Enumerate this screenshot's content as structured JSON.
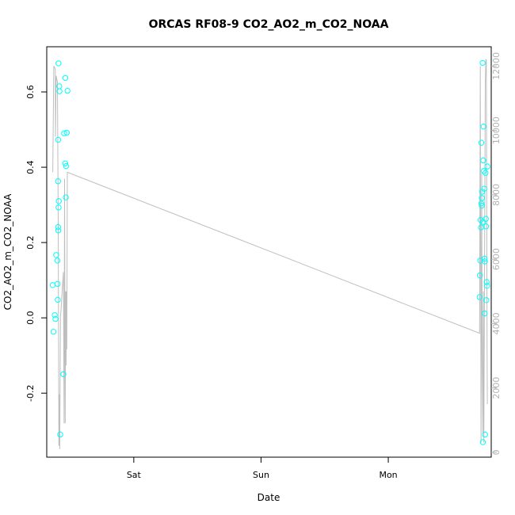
{
  "chart_data": {
    "type": "scatter",
    "title": "ORCAS RF08-9 CO2_AO2_m_CO2_NOAA",
    "xlabel": "Date",
    "ylabel": "CO2_AO2_m_CO2_NOAA",
    "y2label": "",
    "x_axis": {
      "kind": "date",
      "range": [
        "2016-02-19T07:35",
        "2016-02-22T19:25"
      ],
      "ticks": [
        {
          "value": "2016-02-20T00:00",
          "label": "Sat"
        },
        {
          "value": "2016-02-21T00:00",
          "label": "Sun"
        },
        {
          "value": "2016-02-22T00:00",
          "label": "Mon"
        }
      ]
    },
    "y_axis": {
      "range": [
        -0.37,
        0.72
      ],
      "ticks": [
        -0.2,
        0.0,
        0.2,
        0.4,
        0.6
      ],
      "tick_labels": [
        "-0.2",
        "0.0",
        "0.2",
        "0.4",
        "0.6"
      ]
    },
    "y2_axis": {
      "range": [
        -150,
        12600
      ],
      "ticks": [
        0,
        2000,
        4000,
        6000,
        8000,
        10000,
        12000
      ],
      "tick_labels": [
        "0",
        "2000",
        "4000",
        "6000",
        "8000",
        "10000",
        "12000"
      ],
      "color": "#b3b3b3"
    },
    "grid": false,
    "series": [
      {
        "role": "points",
        "axis": "left",
        "color": "#00ffff",
        "marker": "open-circle",
        "points": [
          [
            "2016-02-19T08:43",
            0.087
          ],
          [
            "2016-02-19T08:51",
            -0.037
          ],
          [
            "2016-02-19T09:06",
            0.007
          ],
          [
            "2016-02-19T09:14",
            -0.003
          ],
          [
            "2016-02-19T09:22",
            0.167
          ],
          [
            "2016-02-19T09:36",
            0.152
          ],
          [
            "2016-02-19T09:38",
            0.09
          ],
          [
            "2016-02-19T09:40",
            0.048
          ],
          [
            "2016-02-19T09:43",
            0.363
          ],
          [
            "2016-02-19T09:43",
            0.241
          ],
          [
            "2016-02-19T09:45",
            0.232
          ],
          [
            "2016-02-19T09:44",
            0.473
          ],
          [
            "2016-02-19T09:49",
            0.293
          ],
          [
            "2016-02-19T09:51",
            0.31
          ],
          [
            "2016-02-19T09:48",
            0.676
          ],
          [
            "2016-02-19T09:57",
            0.615
          ],
          [
            "2016-02-19T09:59",
            0.602
          ],
          [
            "2016-02-19T10:07",
            -0.31
          ],
          [
            "2016-02-19T10:43",
            -0.15
          ],
          [
            "2016-02-19T10:51",
            0.49
          ],
          [
            "2016-02-19T11:04",
            0.41
          ],
          [
            "2016-02-19T11:06",
            0.637
          ],
          [
            "2016-02-19T11:11",
            0.32
          ],
          [
            "2016-02-19T11:14",
            0.403
          ],
          [
            "2016-02-19T11:22",
            0.492
          ],
          [
            "2016-02-19T11:30",
            0.603
          ],
          [
            "2016-02-22T17:13",
            0.055
          ],
          [
            "2016-02-22T17:17",
            0.113
          ],
          [
            "2016-02-22T17:21",
            0.152
          ],
          [
            "2016-02-22T17:25",
            0.26
          ],
          [
            "2016-02-22T17:29",
            0.24
          ],
          [
            "2016-02-22T17:33",
            0.465
          ],
          [
            "2016-02-22T17:34",
            0.304
          ],
          [
            "2016-02-22T17:37",
            0.298
          ],
          [
            "2016-02-22T17:40",
            0.318
          ],
          [
            "2016-02-22T17:42",
            0.335
          ],
          [
            "2016-02-22T17:47",
            0.677
          ],
          [
            "2016-02-22T17:50",
            -0.33
          ],
          [
            "2016-02-22T17:53",
            0.255
          ],
          [
            "2016-02-22T17:55",
            0.418
          ],
          [
            "2016-02-22T17:58",
            0.508
          ],
          [
            "2016-02-22T18:02",
            0.39
          ],
          [
            "2016-02-22T18:06",
            0.343
          ],
          [
            "2016-02-22T18:09",
            0.157
          ],
          [
            "2016-02-22T18:10",
            0.012
          ],
          [
            "2016-02-22T18:13",
            0.15
          ],
          [
            "2016-02-22T18:15",
            -0.31
          ],
          [
            "2016-02-22T18:20",
            0.385
          ],
          [
            "2016-02-22T18:24",
            0.263
          ],
          [
            "2016-02-22T18:26",
            0.243
          ],
          [
            "2016-02-22T18:29",
            0.047
          ],
          [
            "2016-02-22T18:35",
            0.095
          ],
          [
            "2016-02-22T18:38",
            0.085
          ],
          [
            "2016-02-22T18:41",
            0.402
          ]
        ]
      },
      {
        "role": "line",
        "axis": "right",
        "color": "#bebebe",
        "points": [
          [
            "2016-02-19T08:43",
            8700
          ],
          [
            "2016-02-19T08:55",
            12000
          ],
          [
            "2016-02-19T09:12",
            11900
          ],
          [
            "2016-02-19T09:14",
            9800
          ],
          [
            "2016-02-19T09:22",
            11700
          ],
          [
            "2016-02-19T09:36",
            11500
          ],
          [
            "2016-02-19T09:45",
            7000
          ],
          [
            "2016-02-19T09:52",
            200
          ],
          [
            "2016-02-19T09:59",
            1800
          ],
          [
            "2016-02-19T10:02",
            100
          ],
          [
            "2016-02-19T10:06",
            2000
          ],
          [
            "2016-02-19T10:10",
            4200
          ],
          [
            "2016-02-19T10:16",
            4400
          ],
          [
            "2016-02-19T10:29",
            5000
          ],
          [
            "2016-02-19T10:43",
            5600
          ],
          [
            "2016-02-19T10:51",
            900
          ],
          [
            "2016-02-19T10:57",
            8500
          ],
          [
            "2016-02-19T11:04",
            900
          ],
          [
            "2016-02-19T11:09",
            5000
          ],
          [
            "2016-02-19T11:14",
            2700
          ],
          [
            "2016-02-19T11:18",
            5000
          ],
          [
            "2016-02-19T11:22",
            3200
          ],
          [
            "2016-02-19T11:28",
            8700
          ],
          [
            "2016-02-22T17:13",
            3700
          ],
          [
            "2016-02-22T17:21",
            12000
          ],
          [
            "2016-02-22T17:29",
            300
          ],
          [
            "2016-02-22T17:37",
            8700
          ],
          [
            "2016-02-22T17:42",
            3000
          ],
          [
            "2016-02-22T17:50",
            600
          ],
          [
            "2016-02-22T17:55",
            5000
          ],
          [
            "2016-02-22T18:02",
            300
          ],
          [
            "2016-02-22T18:10",
            6000
          ],
          [
            "2016-02-22T18:18",
            11500
          ],
          [
            "2016-02-22T18:24",
            12200
          ],
          [
            "2016-02-22T18:29",
            12200
          ],
          [
            "2016-02-22T18:38",
            3000
          ],
          [
            "2016-02-22T18:41",
            1500
          ]
        ]
      }
    ]
  }
}
